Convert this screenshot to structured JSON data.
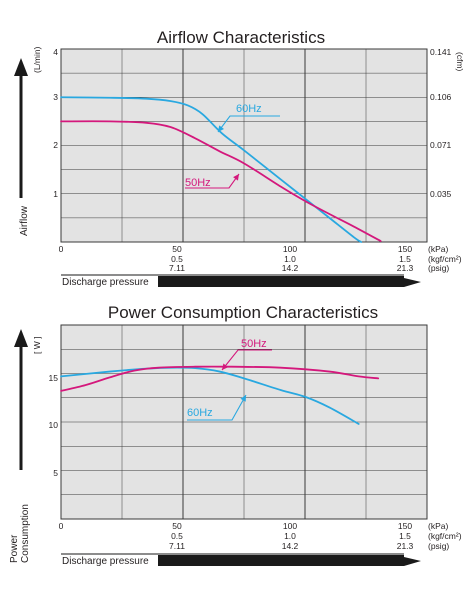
{
  "colors": {
    "grid_bg": "#e3e3e3",
    "grid_line": "#3a3a3a",
    "series_50hz": "#d4187c",
    "series_60hz": "#29a8e0",
    "text": "#231f20"
  },
  "chart_data": [
    {
      "type": "line",
      "title": "Airflow Characteristics",
      "ylabel": "Airflow",
      "y_unit_left": "(L/min)",
      "y_unit_right": "(cfm)",
      "xlabel": "Discharge pressure",
      "grid": true,
      "xlim": [
        0,
        150
      ],
      "ylim": [
        0,
        4
      ],
      "x_ticks": [
        "0",
        "50",
        "100",
        "150"
      ],
      "x_ticks_kgf": [
        "0.5",
        "1.0",
        "1.5"
      ],
      "x_ticks_psig": [
        "7.11",
        "14.2",
        "21.3"
      ],
      "x_unit_kpa": "(kPa)",
      "x_unit_kgf": "(kgf/cm²)",
      "x_unit_psig": "(psig)",
      "y_ticks": [
        "1",
        "2",
        "3",
        "4"
      ],
      "y_ticks_right": [
        "0.035",
        "0.071",
        "0.106",
        "0.141"
      ],
      "series": [
        {
          "name": "60Hz",
          "points": [
            [
              0,
              3.0
            ],
            [
              20,
              2.99
            ],
            [
              35,
              2.97
            ],
            [
              45,
              2.92
            ],
            [
              52,
              2.83
            ],
            [
              58,
              2.65
            ],
            [
              66,
              2.25
            ],
            [
              75,
              1.9
            ],
            [
              90,
              1.3
            ],
            [
              100,
              0.9
            ],
            [
              110,
              0.5
            ],
            [
              120,
              0.1
            ],
            [
              123,
              0.0
            ]
          ]
        },
        {
          "name": "50Hz",
          "points": [
            [
              0,
              2.5
            ],
            [
              20,
              2.5
            ],
            [
              35,
              2.47
            ],
            [
              45,
              2.38
            ],
            [
              55,
              2.15
            ],
            [
              65,
              1.88
            ],
            [
              75,
              1.63
            ],
            [
              90,
              1.15
            ],
            [
              100,
              0.85
            ],
            [
              110,
              0.58
            ],
            [
              120,
              0.32
            ],
            [
              131,
              0.02
            ]
          ]
        }
      ]
    },
    {
      "type": "line",
      "title": "Power Consumption Characteristics",
      "ylabel": "Power Consumption",
      "y_unit_left": "[ W ]",
      "xlabel": "Discharge pressure",
      "grid": true,
      "xlim": [
        0,
        150
      ],
      "ylim": [
        0,
        20
      ],
      "x_ticks": [
        "0",
        "50",
        "100",
        "150"
      ],
      "x_ticks_kgf": [
        "0.5",
        "1.0",
        "1.5"
      ],
      "x_ticks_psig": [
        "7.11",
        "14.2",
        "21.3"
      ],
      "x_unit_kpa": "(kPa)",
      "x_unit_kgf": "(kgf/cm²)",
      "x_unit_psig": "(psig)",
      "y_ticks": [
        "5",
        "10",
        "15"
      ],
      "series": [
        {
          "name": "60Hz",
          "points": [
            [
              0,
              14.7
            ],
            [
              20,
              15.2
            ],
            [
              35,
              15.5
            ],
            [
              45,
              15.6
            ],
            [
              55,
              15.55
            ],
            [
              65,
              15.2
            ],
            [
              75,
              14.5
            ],
            [
              90,
              13.3
            ],
            [
              100,
              12.6
            ],
            [
              110,
              11.5
            ],
            [
              122,
              9.8
            ]
          ]
        },
        {
          "name": "50Hz",
          "points": [
            [
              0,
              13.2
            ],
            [
              10,
              13.8
            ],
            [
              20,
              14.6
            ],
            [
              30,
              15.3
            ],
            [
              40,
              15.6
            ],
            [
              55,
              15.7
            ],
            [
              70,
              15.7
            ],
            [
              90,
              15.6
            ],
            [
              110,
              15.2
            ],
            [
              122,
              14.7
            ],
            [
              130,
              14.5
            ]
          ]
        }
      ]
    }
  ]
}
